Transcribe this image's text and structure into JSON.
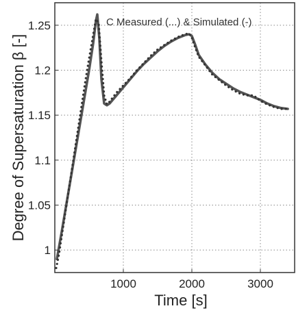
{
  "chart_data": {
    "type": "line",
    "title": "",
    "xlabel": "Time [s]",
    "ylabel": "Degree of Supersaturation β [-]",
    "annotation": "C Measured (...) & Simulated (-)",
    "xlim": [
      0,
      3500
    ],
    "ylim": [
      0.975,
      1.275
    ],
    "xticks": [
      1000,
      2000,
      3000
    ],
    "yticks": [
      1,
      1.05,
      1.1,
      1.15,
      1.2,
      1.25
    ],
    "grid": true,
    "series": [
      {
        "style": "solid",
        "color": "#555555",
        "x": [
          30,
          100,
          200,
          300,
          400,
          500,
          560,
          600,
          620,
          650,
          680,
          720,
          760,
          800,
          900,
          1000,
          1100,
          1200,
          1300,
          1400,
          1500,
          1600,
          1700,
          1800,
          1900,
          1960,
          2000,
          2050,
          2100,
          2200,
          2300,
          2400,
          2500,
          2600,
          2700,
          2800,
          2900,
          3000,
          3100,
          3200,
          3300,
          3400
        ],
        "y": [
          0.99,
          1.02,
          1.065,
          1.11,
          1.155,
          1.2,
          1.23,
          1.255,
          1.262,
          1.235,
          1.19,
          1.163,
          1.161,
          1.163,
          1.172,
          1.181,
          1.19,
          1.199,
          1.207,
          1.214,
          1.221,
          1.227,
          1.232,
          1.236,
          1.239,
          1.24,
          1.238,
          1.228,
          1.217,
          1.206,
          1.197,
          1.19,
          1.185,
          1.18,
          1.176,
          1.173,
          1.17,
          1.167,
          1.163,
          1.16,
          1.158,
          1.157
        ]
      },
      {
        "style": "dotted",
        "color": "#333333",
        "x": [
          20,
          60,
          100,
          150,
          200,
          250,
          300,
          350,
          400,
          450,
          500,
          550,
          600,
          640,
          680,
          720,
          760,
          800,
          900,
          1000,
          1100,
          1200,
          1300,
          1400,
          1500,
          1600,
          1700,
          1800,
          1900,
          1960,
          2000,
          2050,
          2100,
          2200,
          2300,
          2400,
          2500,
          2600,
          2700,
          2800,
          2900,
          3000,
          3100,
          3200,
          3300,
          3400
        ],
        "y": [
          0.98,
          0.995,
          1.015,
          1.04,
          1.065,
          1.09,
          1.115,
          1.14,
          1.165,
          1.19,
          1.213,
          1.235,
          1.257,
          1.252,
          1.21,
          1.172,
          1.162,
          1.165,
          1.175,
          1.183,
          1.191,
          1.2,
          1.208,
          1.216,
          1.223,
          1.228,
          1.233,
          1.237,
          1.24,
          1.241,
          1.236,
          1.225,
          1.215,
          1.205,
          1.195,
          1.189,
          1.183,
          1.178,
          1.174,
          1.172,
          1.172,
          1.166,
          1.162,
          1.159,
          1.157,
          1.157
        ]
      }
    ]
  }
}
